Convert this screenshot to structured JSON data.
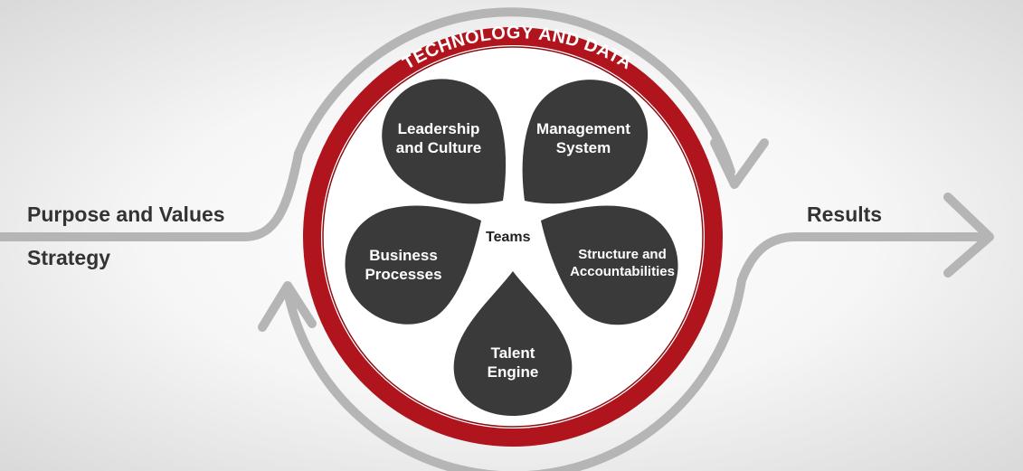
{
  "diagram": {
    "ring_label": "TECHNOLOGY AND DATA",
    "center_label": "Teams",
    "inputs": [
      "Purpose and Values",
      "Strategy"
    ],
    "output": "Results",
    "petals": [
      {
        "id": "leadership",
        "lines": [
          "Leadership",
          "and Culture"
        ]
      },
      {
        "id": "management",
        "lines": [
          "Management",
          "System"
        ]
      },
      {
        "id": "structure",
        "lines": [
          "Structure and",
          "Accountabilities"
        ]
      },
      {
        "id": "talent",
        "lines": [
          "Talent",
          "Engine"
        ]
      },
      {
        "id": "business",
        "lines": [
          "Business",
          "Processes"
        ]
      }
    ]
  },
  "colors": {
    "ring": "#b0141d",
    "petal": "#3a3a3a",
    "flow": "#b5b5b5",
    "text_dark": "#333333"
  }
}
